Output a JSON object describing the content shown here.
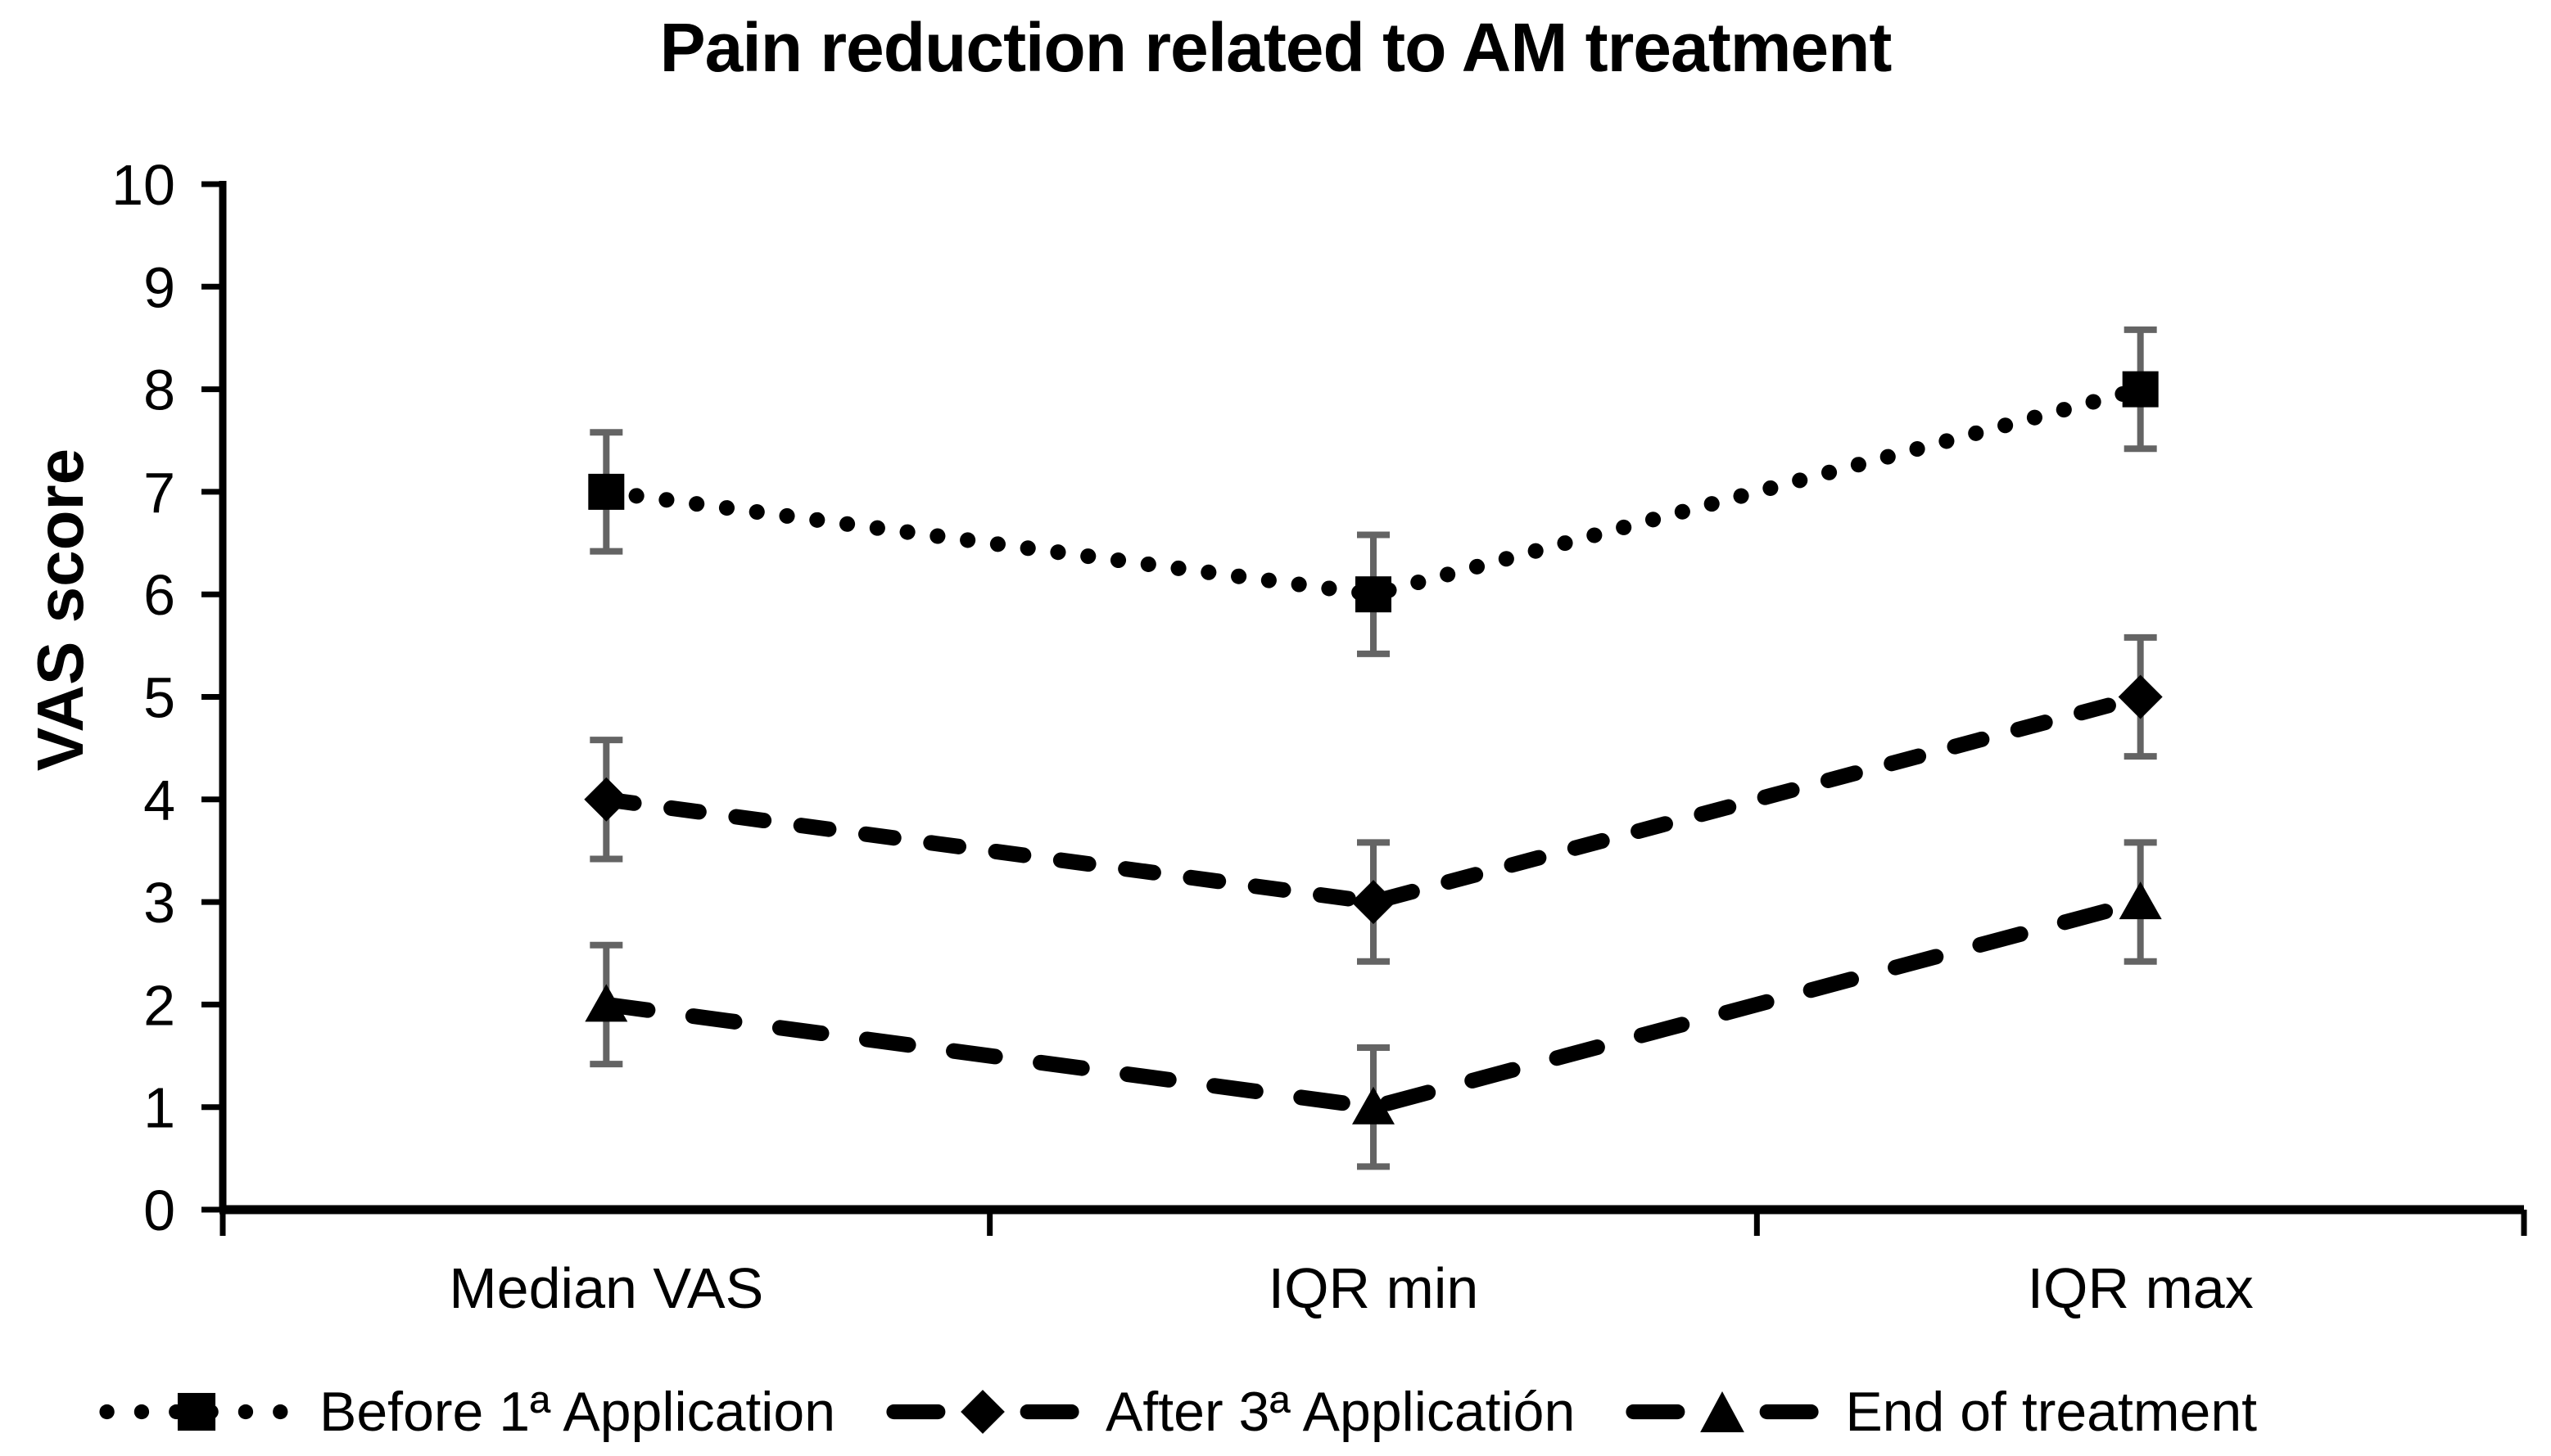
{
  "chart_data": {
    "type": "line",
    "title": "Pain reduction related to AM treatment",
    "ylabel": "VAS score",
    "xlabel": "",
    "categories": [
      "Median VAS",
      "IQR min",
      "IQR max"
    ],
    "ylim": [
      0,
      10
    ],
    "yticks": [
      0,
      1,
      2,
      3,
      4,
      5,
      6,
      7,
      8,
      9,
      10
    ],
    "grid": false,
    "legend_position": "bottom",
    "series_color": "#000000",
    "error_bar_color": "#646464",
    "series": [
      {
        "name": "Before 1ª Application",
        "marker": "square",
        "line_style": "dotted",
        "values": [
          7,
          6,
          8
        ],
        "error": [
          0.58,
          0.58,
          0.58
        ]
      },
      {
        "name": "After 3ª Applicatión",
        "marker": "diamond",
        "line_style": "dashed",
        "values": [
          4,
          3,
          5
        ],
        "error": [
          0.58,
          0.58,
          0.58
        ]
      },
      {
        "name": "End of treatment",
        "marker": "triangle",
        "line_style": "long-dash",
        "values": [
          2,
          1,
          3
        ],
        "error": [
          0.58,
          0.58,
          0.58
        ]
      }
    ]
  }
}
